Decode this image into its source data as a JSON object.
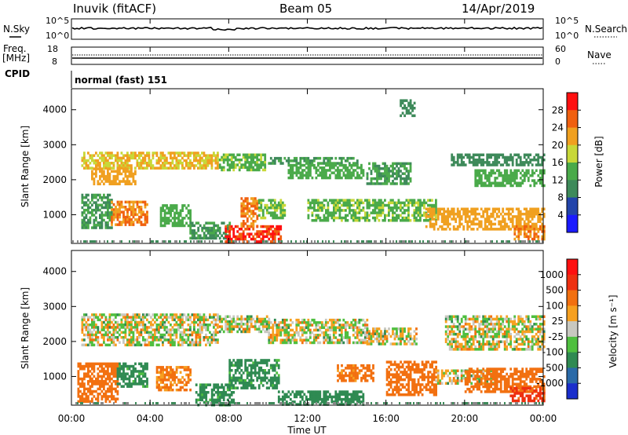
{
  "header": {
    "radar": "Inuvik (fitACF)",
    "beam": "Beam 05",
    "date": "14/Apr/2019"
  },
  "time_axis": {
    "label": "Time UT",
    "ticks": [
      "00:00",
      "04:00",
      "08:00",
      "12:00",
      "16:00",
      "20:00",
      "00:00"
    ]
  },
  "strip_nsky": {
    "left_label": "N.Sky",
    "right_label": "N.Search",
    "left_ticks": [
      "10^5",
      "10^0"
    ],
    "right_ticks": [
      "10^5",
      "10^0"
    ]
  },
  "strip_freq": {
    "left_label_line1": "Freq.",
    "left_label_line2": "[MHz]",
    "right_label": "Nave",
    "left_ticks": [
      "18",
      "8"
    ],
    "right_ticks": [
      "60",
      "0"
    ]
  },
  "cpid": {
    "label": "CPID",
    "mode": "normal (fast) 151"
  },
  "power_panel": {
    "ylabel": "Slant Range [km]",
    "yticks": [
      "4000",
      "3000",
      "2000",
      "1000"
    ],
    "colorbar_label": "Power [dB]",
    "colorbar_ticks": [
      "28",
      "24",
      "20",
      "16",
      "12",
      "8",
      "4"
    ],
    "colors": [
      "#1a1aff",
      "#2244aa",
      "#3e8a5a",
      "#4aaa4a",
      "#c8d838",
      "#f0a020",
      "#f06010",
      "#ff1010"
    ]
  },
  "velocity_panel": {
    "ylabel": "Slant Range [km]",
    "yticks": [
      "4000",
      "3000",
      "2000",
      "1000"
    ],
    "colorbar_label": "Velocity [m s⁻¹]",
    "colorbar_ticks": [
      "1000",
      "500",
      "100",
      "25",
      "-25",
      "-100",
      "-500",
      "-1000"
    ],
    "colors": [
      "#1a2ecc",
      "#2a6aa8",
      "#2f8a52",
      "#4fbf3f",
      "#c8c8c0",
      "#f6a020",
      "#f27010",
      "#ee3010",
      "#ff1010"
    ]
  },
  "chart_data": [
    {
      "type": "heatmap",
      "title": "Power",
      "xlabel": "Time UT",
      "ylabel": "Slant Range [km]",
      "xlim": [
        0,
        24
      ],
      "ylim": [
        180,
        4600
      ],
      "zlim": [
        0,
        32
      ],
      "colorbar_label": "Power [dB]",
      "regions": [
        {
          "t": [
            0.5,
            7.4
          ],
          "r": [
            2350,
            2800
          ],
          "v": 20
        },
        {
          "t": [
            1.0,
            3.2
          ],
          "r": [
            1850,
            2350
          ],
          "v": 22
        },
        {
          "t": [
            7.5,
            9.8
          ],
          "r": [
            2300,
            2750
          ],
          "v": 15
        },
        {
          "t": [
            10.0,
            14.5
          ],
          "r": [
            2450,
            2650
          ],
          "v": 12
        },
        {
          "t": [
            11.0,
            14.8
          ],
          "r": [
            2050,
            2450
          ],
          "v": 14
        },
        {
          "t": [
            15.0,
            17.2
          ],
          "r": [
            1900,
            2500
          ],
          "v": 12
        },
        {
          "t": [
            19.3,
            24.0
          ],
          "r": [
            2400,
            2750
          ],
          "v": 10
        },
        {
          "t": [
            20.5,
            24.0
          ],
          "r": [
            1800,
            2300
          ],
          "v": 14
        },
        {
          "t": [
            0.5,
            2.0
          ],
          "r": [
            650,
            1600
          ],
          "v": 12
        },
        {
          "t": [
            2.0,
            3.8
          ],
          "r": [
            700,
            1400
          ],
          "v": 24
        },
        {
          "t": [
            4.5,
            6.0
          ],
          "r": [
            700,
            1300
          ],
          "v": 14
        },
        {
          "t": [
            6.0,
            8.0
          ],
          "r": [
            300,
            800
          ],
          "v": 12
        },
        {
          "t": [
            7.8,
            10.6
          ],
          "r": [
            200,
            700
          ],
          "v": 28
        },
        {
          "t": [
            8.6,
            9.4
          ],
          "r": [
            700,
            1500
          ],
          "v": 24
        },
        {
          "t": [
            9.5,
            10.8
          ],
          "r": [
            900,
            1450
          ],
          "v": 16
        },
        {
          "t": [
            12.0,
            18.5
          ],
          "r": [
            850,
            1450
          ],
          "v": 15
        },
        {
          "t": [
            18.0,
            24.0
          ],
          "r": [
            600,
            1200
          ],
          "v": 22
        },
        {
          "t": [
            22.5,
            24.0
          ],
          "r": [
            300,
            700
          ],
          "v": 24
        },
        {
          "t": [
            16.7,
            17.4
          ],
          "r": [
            3800,
            4300
          ],
          "v": 10
        }
      ]
    },
    {
      "type": "heatmap",
      "title": "Velocity",
      "xlabel": "Time UT",
      "ylabel": "Slant Range [km]",
      "xlim": [
        0,
        24
      ],
      "ylim": [
        180,
        4600
      ],
      "zlim": [
        -1000,
        1000
      ],
      "colorbar_label": "Velocity [m s⁻¹]",
      "regions": [
        {
          "t": [
            0.5,
            7.4
          ],
          "r": [
            1900,
            2800
          ],
          "v": 0
        },
        {
          "t": [
            7.5,
            10.0
          ],
          "r": [
            2300,
            2750
          ],
          "v": 0
        },
        {
          "t": [
            10.0,
            15.0
          ],
          "r": [
            2000,
            2650
          ],
          "v": 0
        },
        {
          "t": [
            15.0,
            17.5
          ],
          "r": [
            1900,
            2400
          ],
          "v": 0
        },
        {
          "t": [
            19.0,
            24.0
          ],
          "r": [
            1800,
            2750
          ],
          "v": 0
        },
        {
          "t": [
            0.3,
            2.3
          ],
          "r": [
            300,
            1400
          ],
          "v": -300
        },
        {
          "t": [
            2.3,
            3.8
          ],
          "r": [
            700,
            1400
          ],
          "v": 200
        },
        {
          "t": [
            4.3,
            6.0
          ],
          "r": [
            600,
            1300
          ],
          "v": -150
        },
        {
          "t": [
            6.3,
            8.2
          ],
          "r": [
            200,
            800
          ],
          "v": 200
        },
        {
          "t": [
            8.0,
            10.5
          ],
          "r": [
            700,
            1500
          ],
          "v": 200
        },
        {
          "t": [
            10.5,
            14.8
          ],
          "r": [
            200,
            600
          ],
          "v": 300
        },
        {
          "t": [
            13.5,
            15.3
          ],
          "r": [
            850,
            1350
          ],
          "v": -200
        },
        {
          "t": [
            16.0,
            18.5
          ],
          "r": [
            500,
            1450
          ],
          "v": -250
        },
        {
          "t": [
            18.5,
            21.5
          ],
          "r": [
            800,
            1200
          ],
          "v": 0
        },
        {
          "t": [
            20.0,
            24.0
          ],
          "r": [
            600,
            1250
          ],
          "v": -250
        },
        {
          "t": [
            22.3,
            24.0
          ],
          "r": [
            300,
            700
          ],
          "v": -600
        }
      ]
    }
  ]
}
